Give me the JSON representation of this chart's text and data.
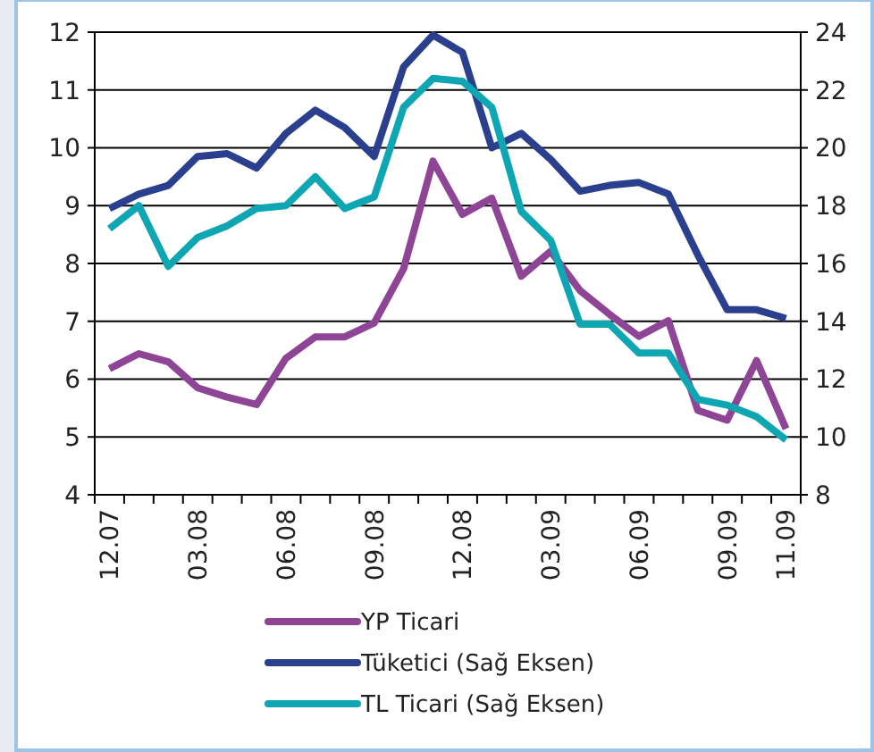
{
  "chart_data": {
    "type": "line",
    "categories": [
      "12.07",
      null,
      null,
      "03.08",
      null,
      null,
      "06.08",
      null,
      null,
      "09.08",
      null,
      null,
      "12.08",
      null,
      null,
      "03.09",
      null,
      null,
      "06.09",
      null,
      null,
      "09.09",
      null,
      "11.09"
    ],
    "series": [
      {
        "name": "YP Ticari",
        "color": "#8e4595",
        "values": [
          6.18,
          6.44,
          6.3,
          5.85,
          5.69,
          5.56,
          6.36,
          6.73,
          6.73,
          6.97,
          7.91,
          9.77,
          8.85,
          9.13,
          7.78,
          8.21,
          7.53,
          7.12,
          6.74,
          7.01,
          5.46,
          5.29,
          6.32,
          5.14
        ]
      },
      {
        "name": "Tüketici (Sağ Eksen)",
        "color": "#2b3f8f",
        "axis": "y2",
        "values": [
          17.9,
          18.4,
          18.7,
          19.7,
          19.8,
          19.3,
          20.5,
          21.3,
          20.7,
          19.7,
          22.8,
          23.9,
          23.3,
          20.0,
          20.5,
          19.6,
          18.5,
          18.7,
          18.8,
          18.4,
          16.3,
          14.4,
          14.4,
          14.1
        ]
      },
      {
        "name": "TL Ticari (Sağ Eksen)",
        "color": "#0fa6b3",
        "axis": "y2",
        "values": [
          17.2,
          18.0,
          15.9,
          16.9,
          17.3,
          17.9,
          18.0,
          19.0,
          17.9,
          18.3,
          21.4,
          22.4,
          22.3,
          21.4,
          17.8,
          16.8,
          13.9,
          13.9,
          12.9,
          12.9,
          11.3,
          11.1,
          10.7,
          9.9
        ]
      }
    ],
    "ylim": [
      4,
      12
    ],
    "yticks": [
      4,
      5,
      6,
      7,
      8,
      9,
      10,
      11,
      12
    ],
    "y2lim": [
      8,
      24
    ],
    "y2ticks": [
      8,
      10,
      12,
      14,
      16,
      18,
      20,
      22,
      24
    ],
    "grid": "y",
    "legend": "bottom",
    "marker": "none",
    "line_style": "solid"
  }
}
